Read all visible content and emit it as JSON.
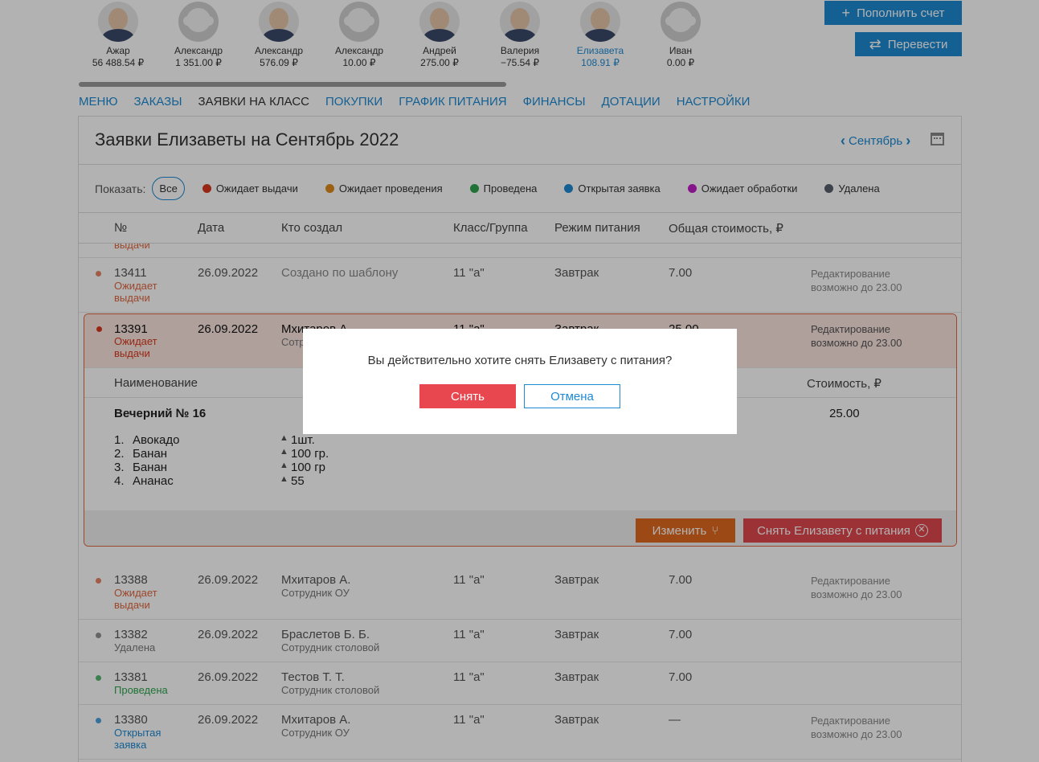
{
  "kids": [
    {
      "name": "Ажар",
      "balance": "56 488.54 ₽",
      "photo": true
    },
    {
      "name": "Александр",
      "balance": "1 351.00 ₽",
      "photo": false
    },
    {
      "name": "Александр",
      "balance": "576.09 ₽",
      "photo": true
    },
    {
      "name": "Александр",
      "balance": "10.00 ₽",
      "photo": false
    },
    {
      "name": "Андрей",
      "balance": "275.00 ₽",
      "photo": true
    },
    {
      "name": "Валерия",
      "balance": "−75.54 ₽",
      "photo": true
    },
    {
      "name": "Елизавета",
      "balance": "108.91 ₽",
      "photo": true,
      "active": true
    },
    {
      "name": "Иван",
      "balance": "0.00 ₽",
      "photo": false
    }
  ],
  "top_buttons": {
    "fill": "Пополнить счет",
    "transfer": "Перевести"
  },
  "nav": [
    "МЕНЮ",
    "ЗАКАЗЫ",
    "ЗАЯВКИ НА КЛАСС",
    "ПОКУПКИ",
    "ГРАФИК ПИТАНИЯ",
    "ФИНАНСЫ",
    "ДОТАЦИИ",
    "НАСТРОЙКИ"
  ],
  "nav_current": "ЗАЯВКИ НА КЛАСС",
  "panel": {
    "title": "Заявки Елизаветы на Сентябрь 2022",
    "month": "Сентябрь"
  },
  "filters": {
    "label": "Показать:",
    "all": "Все",
    "items": [
      {
        "label": "Ожидает выдачи",
        "color": "#d9381e"
      },
      {
        "label": "Ожидает проведения",
        "color": "#e08a1a"
      },
      {
        "label": "Проведена",
        "color": "#2ea44f"
      },
      {
        "label": "Открытая заявка",
        "color": "#1e8ad3"
      },
      {
        "label": "Ожидает обработки",
        "color": "#c11fc8"
      },
      {
        "label": "Удалена",
        "color": "#5a5f6b"
      }
    ]
  },
  "columns": {
    "num": "№",
    "date": "Дата",
    "who": "Кто создал",
    "cls": "Класс/Группа",
    "mode": "Режим питания",
    "cost": "Общая стоимость, ₽"
  },
  "partial_row_status": "выдачи",
  "rows": [
    {
      "num": "13411",
      "status": "Ожидает выдачи",
      "status_color": "#e0663e",
      "date": "26.09.2022",
      "who": "Создано по шаблону",
      "role": "",
      "cls": "11 \"а\"",
      "mode": "Завтрак",
      "cost": "7.00",
      "note": "Редактирование возможно до 23.00"
    },
    {
      "num": "13388",
      "status": "Ожидает выдачи",
      "status_color": "#e0663e",
      "date": "26.09.2022",
      "who": "Мхитаров А.",
      "role": "Сотрудник ОУ",
      "cls": "11 \"а\"",
      "mode": "Завтрак",
      "cost": "7.00",
      "note": "Редактирование возможно до 23.00"
    },
    {
      "num": "13382",
      "status": "Удалена",
      "status_color": "#777777",
      "date": "26.09.2022",
      "who": "Браслетов Б. Б.",
      "role": "Сотрудник столовой",
      "cls": "11 \"а\"",
      "mode": "Завтрак",
      "cost": "7.00",
      "note": ""
    },
    {
      "num": "13381",
      "status": "Проведена",
      "status_color": "#2ea44f",
      "date": "26.09.2022",
      "who": "Тестов Т. Т.",
      "role": "Сотрудник столовой",
      "cls": "11 \"а\"",
      "mode": "Завтрак",
      "cost": "7.00",
      "note": ""
    },
    {
      "num": "13380",
      "status": "Открытая заявка",
      "status_color": "#1e8ad3",
      "date": "26.09.2022",
      "who": "Мхитаров А.",
      "role": "Сотрудник ОУ",
      "cls": "11 \"а\"",
      "mode": "Завтрак",
      "cost": "—",
      "note": "Редактирование возможно до 23.00"
    }
  ],
  "expanded": {
    "num": "13391",
    "status": "Ожидает выдачи",
    "status_color": "#d9381e",
    "date": "26.09.2022",
    "who": "Мхитаров А.",
    "role": "Сотр",
    "cls": "11 \"а\"",
    "mode": "Завтрак",
    "cost": "25.00",
    "note": "Редактирование возможно до 23.00",
    "col_name": "Наименование",
    "col_cost": "Стоимость, ₽",
    "dish": "Вечерний № 16",
    "dish_cost": "25.00",
    "items": [
      {
        "n": "1.",
        "name": "Авокадо",
        "qty": "1шт."
      },
      {
        "n": "2.",
        "name": "Банан",
        "qty": "100 гр."
      },
      {
        "n": "3.",
        "name": "Банан",
        "qty": "100 гр"
      },
      {
        "n": "4.",
        "name": "Ананас",
        "qty": "55"
      }
    ],
    "edit_label": "Изменить",
    "remove_label": "Снять Елизавету с питания"
  },
  "modal": {
    "question": "Вы действительно хотите снять Елизавету с питания?",
    "ok": "Снять",
    "cancel": "Отмена"
  }
}
